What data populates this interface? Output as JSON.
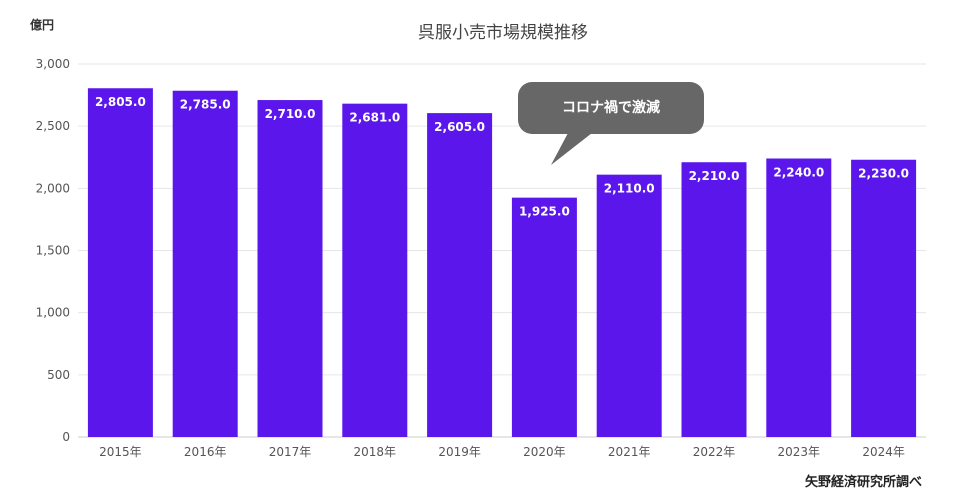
{
  "chart_data": {
    "type": "bar",
    "title": "呉服小売市場規模推移",
    "ylabel": "億円",
    "categories": [
      "2015年",
      "2016年",
      "2017年",
      "2018年",
      "2019年",
      "2020年",
      "2021年",
      "2022年",
      "2023年",
      "2024年"
    ],
    "values": [
      2805.0,
      2785.0,
      2710.0,
      2681.0,
      2605.0,
      1925.0,
      2110.0,
      2210.0,
      2240.0,
      2230.0
    ],
    "value_labels": [
      "2,805.0",
      "2,785.0",
      "2,710.0",
      "2,681.0",
      "2,605.0",
      "1,925.0",
      "2,110.0",
      "2,210.0",
      "2,240.0",
      "2,230.0"
    ],
    "ylim": [
      0,
      3000
    ],
    "yticks": [
      0,
      500,
      1000,
      1500,
      2000,
      2500,
      3000
    ],
    "ytick_labels": [
      "0",
      "500",
      "1,000",
      "1,500",
      "2,000",
      "2,500",
      "3,000"
    ],
    "grid": true,
    "legend": "none",
    "bar_color": "#5b16ec",
    "annotation": {
      "text": "コロナ禍で激減",
      "target_category": "2020年",
      "bg_color": "#676767"
    },
    "source": "矢野経済研究所調べ"
  }
}
